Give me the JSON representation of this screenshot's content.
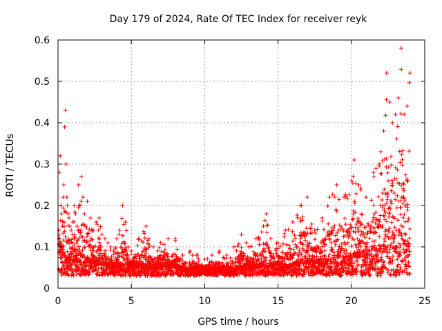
{
  "chart_data": {
    "type": "scatter",
    "title": "Day 179 of 2024, Rate Of TEC Index for receiver reyk",
    "xlabel": "GPS time / hours",
    "ylabel": "ROTI / TECUs",
    "xlim": [
      0,
      25
    ],
    "ylim": [
      0,
      0.6
    ],
    "xticks": [
      "0",
      "5",
      "10",
      "15",
      "20",
      "25"
    ],
    "yticks": [
      "0",
      "0.1",
      "0.2",
      "0.3",
      "0.4",
      "0.5",
      "0.6"
    ],
    "grid": true,
    "marker": "+",
    "marker_color": "#ff0000",
    "series": [
      {
        "x": [
          0.05,
          0.1,
          0.15,
          0.2,
          0.25,
          0.3,
          0.35,
          0.4,
          0.45,
          0.5,
          0.55,
          0.6,
          0.65,
          0.7,
          0.75,
          0.8,
          0.9,
          1.0,
          1.1,
          1.2,
          1.3,
          1.4,
          1.5,
          1.6,
          1.7,
          1.8,
          1.9,
          2.0,
          2.2,
          2.4,
          2.6,
          2.8,
          3.0,
          3.2,
          3.4,
          3.6,
          3.8,
          4.0,
          4.2,
          4.4,
          4.6,
          4.8,
          5.0,
          5.5,
          6.0,
          6.2,
          6.5,
          7.0,
          7.5,
          8.0,
          8.5,
          9.0,
          9.5,
          10.0,
          10.5,
          11.0,
          11.5,
          12.0,
          12.5,
          13.0,
          13.5,
          14.0,
          14.2,
          14.5,
          15.0,
          15.5,
          16.0,
          16.5,
          17.0,
          17.5,
          18.0,
          18.5,
          19.0,
          19.5,
          20.0,
          20.2,
          20.5,
          21.0,
          21.5,
          22.0,
          22.2,
          22.4,
          22.6,
          22.8,
          23.0,
          23.2,
          23.4,
          23.6,
          23.8,
          24.0
        ],
        "y": [
          0.14,
          0.28,
          0.32,
          0.2,
          0.18,
          0.15,
          0.22,
          0.25,
          0.39,
          0.43,
          0.3,
          0.22,
          0.2,
          0.18,
          0.17,
          0.15,
          0.14,
          0.16,
          0.2,
          0.18,
          0.15,
          0.25,
          0.2,
          0.27,
          0.22,
          0.18,
          0.15,
          0.21,
          0.17,
          0.14,
          0.16,
          0.17,
          0.13,
          0.12,
          0.11,
          0.1,
          0.09,
          0.12,
          0.14,
          0.2,
          0.16,
          0.1,
          0.09,
          0.12,
          0.15,
          0.12,
          0.1,
          0.11,
          0.12,
          0.12,
          0.08,
          0.09,
          0.08,
          0.07,
          0.08,
          0.09,
          0.08,
          0.1,
          0.13,
          0.1,
          0.12,
          0.15,
          0.18,
          0.12,
          0.11,
          0.14,
          0.16,
          0.2,
          0.22,
          0.14,
          0.17,
          0.22,
          0.25,
          0.22,
          0.26,
          0.31,
          0.25,
          0.22,
          0.28,
          0.33,
          0.38,
          0.52,
          0.45,
          0.4,
          0.42,
          0.46,
          0.58,
          0.42,
          0.44,
          0.52
        ]
      }
    ],
    "baseline_y": [
      0.09,
      0.12,
      0.1,
      0.09,
      0.08,
      0.08,
      0.09,
      0.08,
      0.09,
      0.1,
      0.09,
      0.08,
      0.08,
      0.07,
      0.07,
      0.07,
      0.06,
      0.07,
      0.07,
      0.06,
      0.06,
      0.07,
      0.07,
      0.07,
      0.07,
      0.06,
      0.06,
      0.07,
      0.06,
      0.06,
      0.06,
      0.06,
      0.05,
      0.05,
      0.05,
      0.05,
      0.05,
      0.05,
      0.05,
      0.05,
      0.05,
      0.05,
      0.05,
      0.05,
      0.05,
      0.05,
      0.05,
      0.05,
      0.05,
      0.05,
      0.04,
      0.04,
      0.04,
      0.04,
      0.04,
      0.04,
      0.04,
      0.04,
      0.05,
      0.05,
      0.05,
      0.05,
      0.05,
      0.05,
      0.05,
      0.05,
      0.05,
      0.06,
      0.06,
      0.06,
      0.06,
      0.06,
      0.07,
      0.07,
      0.07,
      0.08,
      0.08,
      0.08,
      0.09,
      0.1,
      0.11,
      0.12,
      0.12,
      0.12,
      0.12,
      0.13,
      0.13,
      0.12,
      0.12,
      0.12
    ]
  }
}
